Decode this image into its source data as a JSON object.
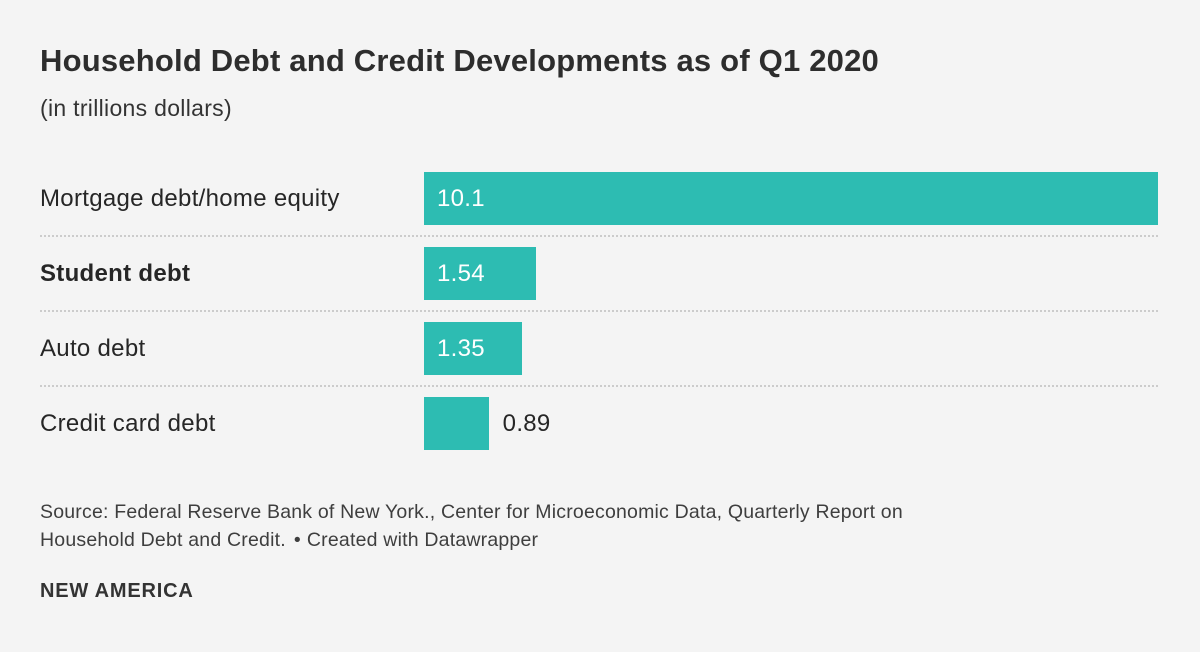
{
  "header": {
    "title": "Household Debt and Credit Developments as of Q1 2020",
    "subtitle": "(in trillions dollars)"
  },
  "chart_data": {
    "type": "bar",
    "orientation": "horizontal",
    "title": "Household Debt and Credit Developments as of Q1 2020",
    "subtitle": "(in trillions dollars)",
    "unit": "trillions dollars",
    "categories": [
      "Mortgage debt/home equity",
      "Student debt",
      "Auto debt",
      "Credit card debt"
    ],
    "values": [
      10.1,
      1.54,
      1.35,
      0.89
    ],
    "value_labels": [
      "10.1",
      "1.54",
      "1.35",
      "0.89"
    ],
    "value_label_positions": [
      "inside",
      "inside",
      "inside",
      "outside"
    ],
    "emphasized_index": 1,
    "xlim": [
      0,
      10.1
    ],
    "grid": false,
    "legend": "none",
    "bar_color": "#2dbcb2"
  },
  "footer": {
    "source_line1": "Source: Federal Reserve Bank of New York., Center for Microeconomic Data, Quarterly Report on",
    "source_line2": "Household Debt and Credit.",
    "separator": "•",
    "attribution": "Created with Datawrapper",
    "logo": "NEW AMERICA"
  },
  "colors": {
    "background": "#f4f4f4",
    "bar": "#2dbcb2",
    "title_text": "#2d2d2d",
    "body_text": "#262626",
    "value_inside_text": "#ffffff",
    "divider": "#cccccc"
  }
}
